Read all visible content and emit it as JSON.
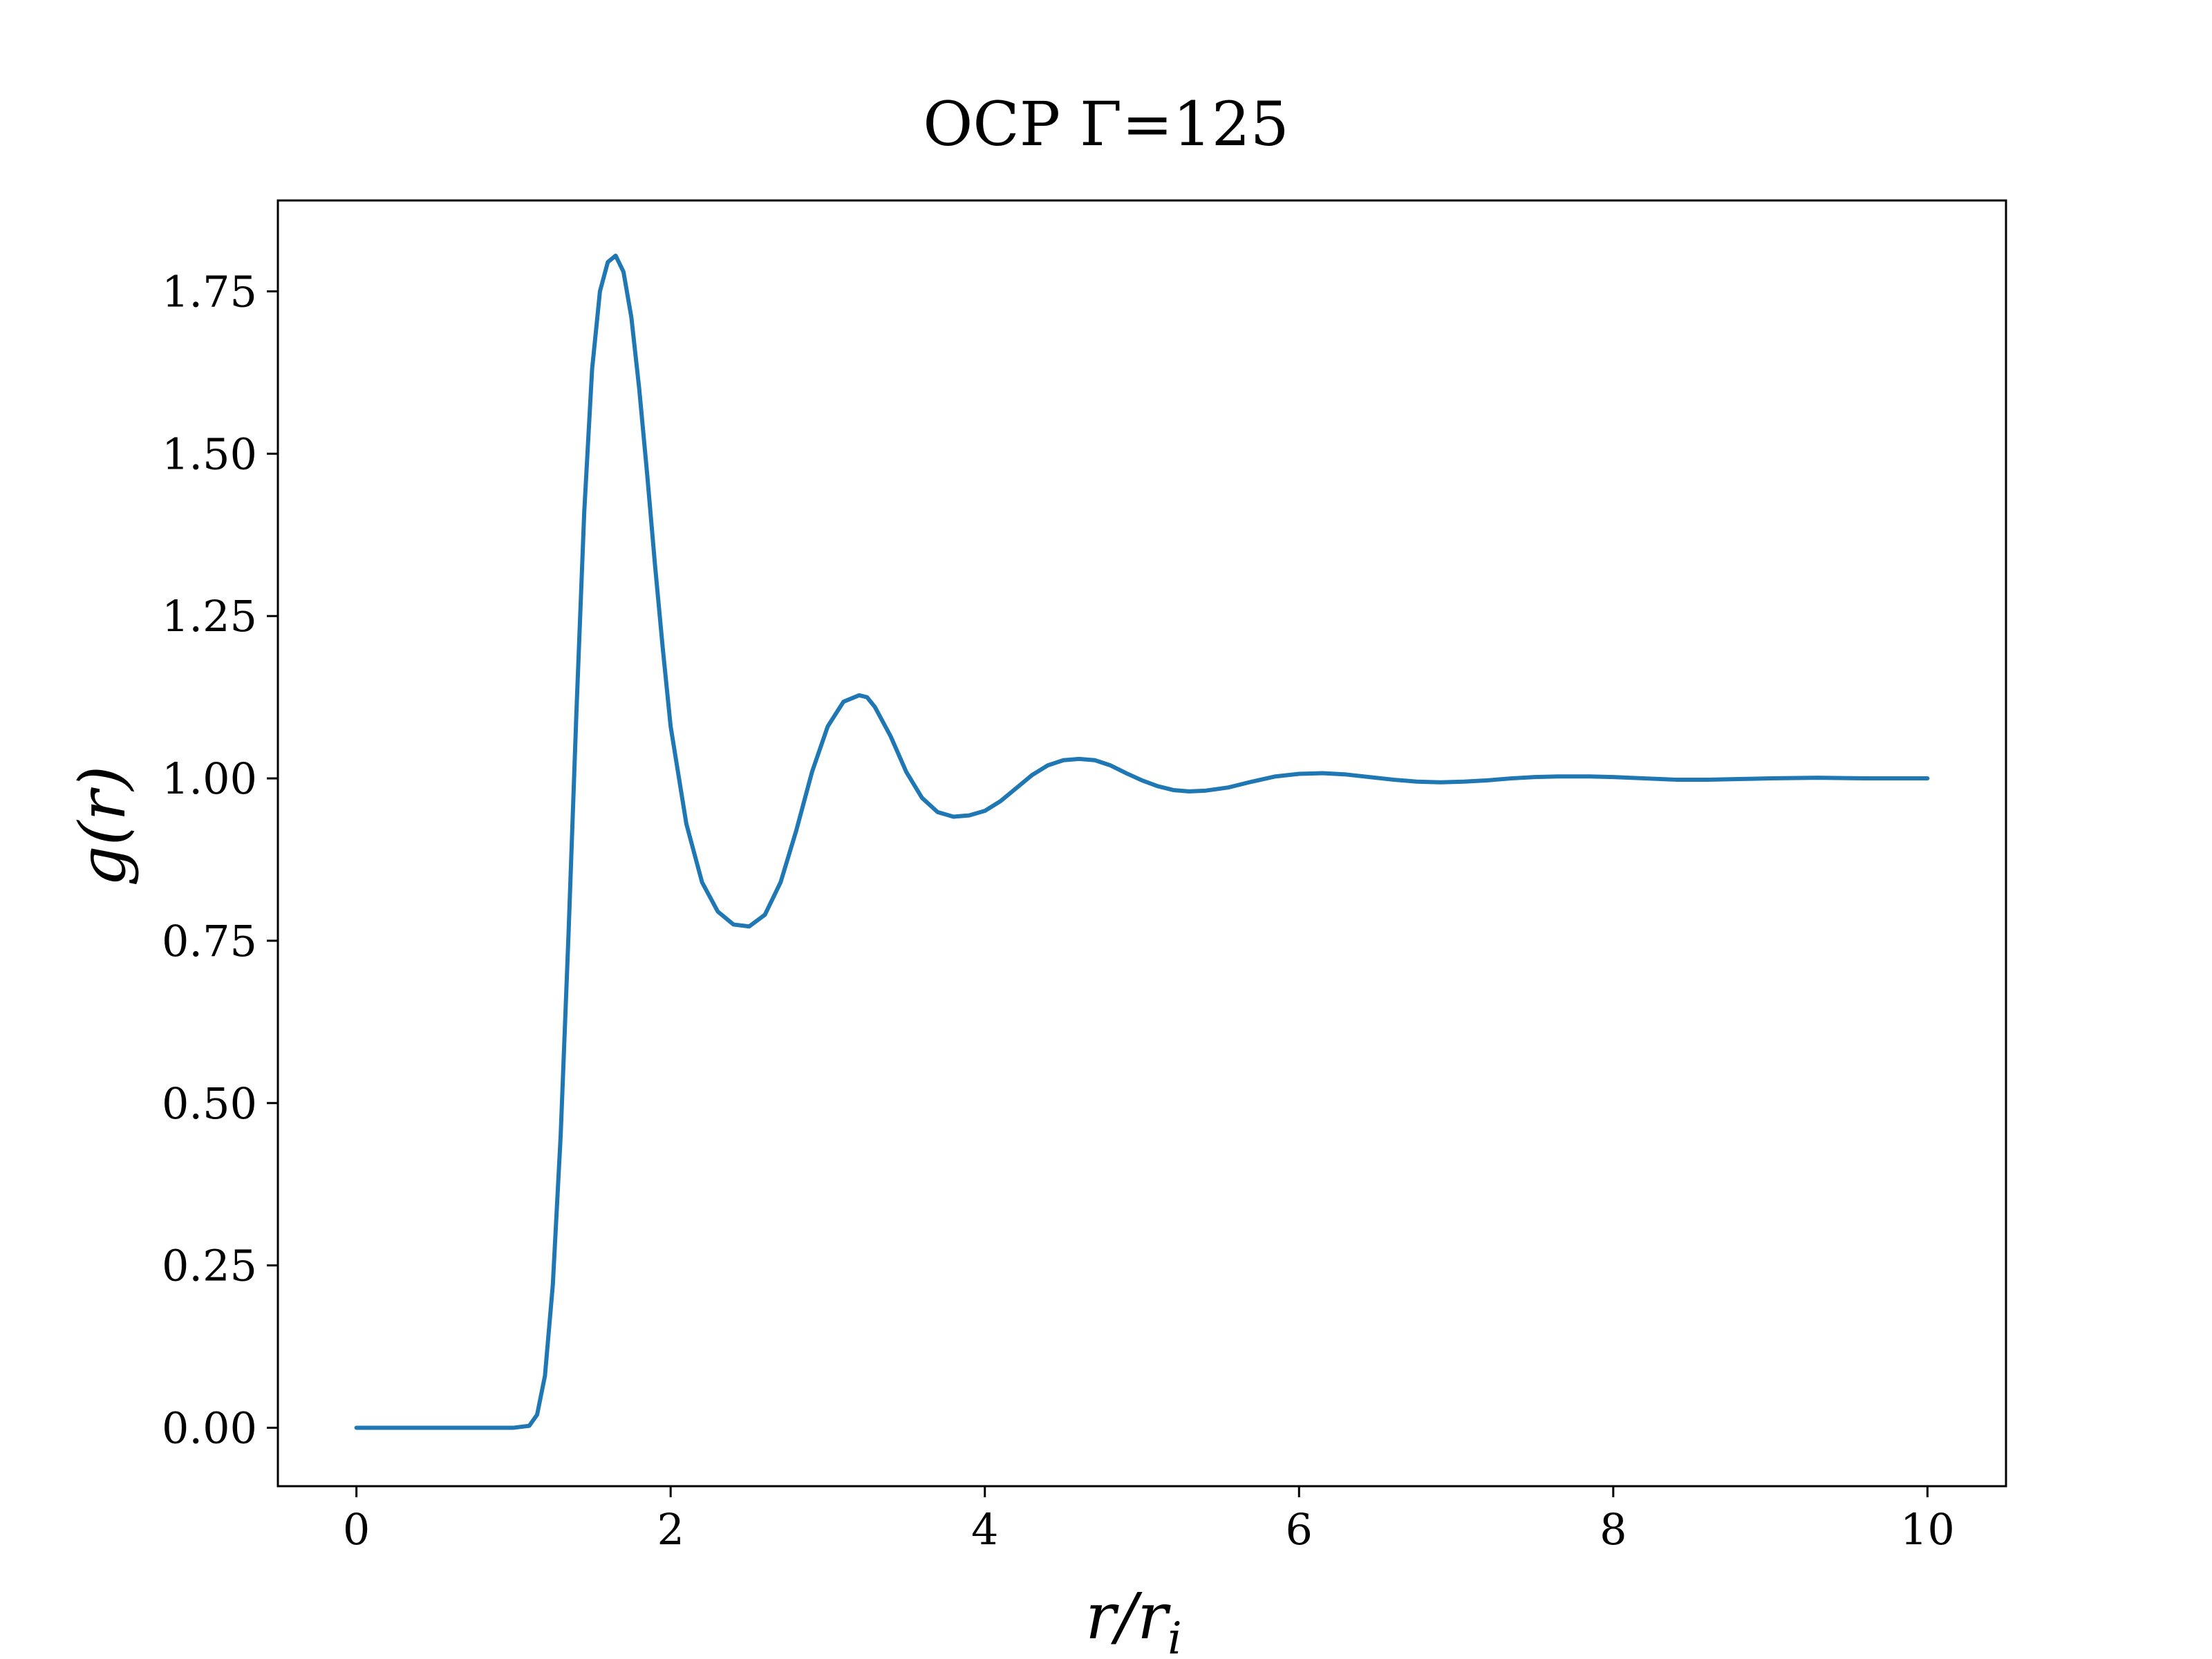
{
  "chart_data": {
    "type": "line",
    "title": "OCP Γ=125",
    "xlabel": "r/r_i",
    "xlabel_main": "r/r",
    "xlabel_sub": "i",
    "ylabel": "g(r)",
    "xlim": [
      -0.5,
      10.5
    ],
    "ylim": [
      -0.09,
      1.89
    ],
    "xticks": [
      0,
      2,
      4,
      6,
      8,
      10
    ],
    "xtick_labels": [
      "0",
      "2",
      "4",
      "6",
      "8",
      "10"
    ],
    "yticks": [
      0.0,
      0.25,
      0.5,
      0.75,
      1.0,
      1.25,
      1.5,
      1.75
    ],
    "ytick_labels": [
      "0.00",
      "0.25",
      "0.50",
      "0.75",
      "1.00",
      "1.25",
      "1.50",
      "1.75"
    ],
    "grid": false,
    "series": [
      {
        "name": "g(r)",
        "color": "#1f77b4",
        "x": [
          0,
          0.5,
          1.0,
          1.1,
          1.15,
          1.2,
          1.25,
          1.3,
          1.35,
          1.4,
          1.45,
          1.5,
          1.55,
          1.6,
          1.65,
          1.7,
          1.75,
          1.8,
          1.85,
          1.9,
          1.95,
          2.0,
          2.1,
          2.2,
          2.3,
          2.4,
          2.5,
          2.6,
          2.7,
          2.8,
          2.9,
          3.0,
          3.1,
          3.2,
          3.25,
          3.3,
          3.4,
          3.5,
          3.6,
          3.7,
          3.8,
          3.9,
          4.0,
          4.1,
          4.2,
          4.3,
          4.4,
          4.5,
          4.6,
          4.7,
          4.8,
          4.9,
          5.0,
          5.1,
          5.2,
          5.3,
          5.4,
          5.55,
          5.7,
          5.85,
          6.0,
          6.15,
          6.3,
          6.45,
          6.6,
          6.75,
          6.9,
          7.05,
          7.2,
          7.35,
          7.5,
          7.65,
          7.85,
          8.0,
          8.2,
          8.4,
          8.6,
          8.8,
          9.0,
          9.3,
          9.6,
          10.0
        ],
        "values": [
          0,
          0,
          0.0,
          0.003,
          0.02,
          0.08,
          0.22,
          0.45,
          0.76,
          1.1,
          1.41,
          1.63,
          1.75,
          1.795,
          1.805,
          1.78,
          1.71,
          1.6,
          1.47,
          1.33,
          1.2,
          1.08,
          0.93,
          0.84,
          0.795,
          0.775,
          0.772,
          0.79,
          0.84,
          0.92,
          1.01,
          1.08,
          1.118,
          1.128,
          1.125,
          1.11,
          1.065,
          1.01,
          0.97,
          0.948,
          0.941,
          0.943,
          0.95,
          0.965,
          0.985,
          1.005,
          1.02,
          1.028,
          1.03,
          1.028,
          1.02,
          1.008,
          0.997,
          0.988,
          0.982,
          0.98,
          0.981,
          0.986,
          0.995,
          1.003,
          1.007,
          1.008,
          1.006,
          1.002,
          0.998,
          0.995,
          0.994,
          0.995,
          0.997,
          1.0,
          1.002,
          1.003,
          1.003,
          1.002,
          1.0,
          0.998,
          0.998,
          0.999,
          1.0,
          1.001,
          1.0,
          1.0
        ]
      }
    ]
  }
}
